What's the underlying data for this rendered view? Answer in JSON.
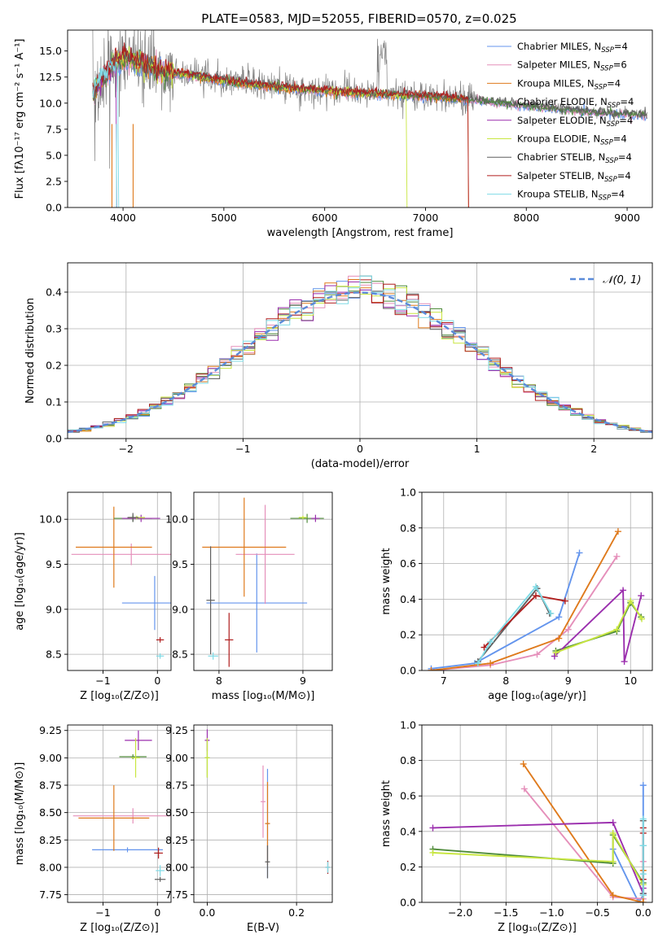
{
  "figure": {
    "title": "PLATE=0583, MJD=52055, FIBERID=0570, z=0.025",
    "background": "#ffffff",
    "model_colors": [
      "#6495ed",
      "#e58fba",
      "#df7a1c",
      "#4f8b3b",
      "#9b2fae",
      "#c8e640",
      "#5f5f5f",
      "#b01e1e",
      "#7fdbe6"
    ],
    "data_color": "#808080"
  },
  "chart_data": [
    {
      "id": "spectrum",
      "type": "line",
      "title": "PLATE=0583, MJD=52055, FIBERID=0570, z=0.025",
      "xlabel": "wavelength [Angstrom, rest frame]",
      "ylabel": "Flux [fλ10⁻¹⁷ erg cm⁻² s⁻¹ A⁻¹]",
      "xlim": [
        3450,
        9250
      ],
      "ylim": [
        0,
        17
      ],
      "xticks": [
        4000,
        5000,
        6000,
        7000,
        8000,
        9000
      ],
      "yticks": [
        0.0,
        2.5,
        5.0,
        7.5,
        10.0,
        12.5,
        15.0
      ],
      "ytick_labels": [
        "0.0",
        "2.5",
        "5.0",
        "7.5",
        "10.0",
        "12.5",
        "15.0"
      ],
      "grid": false,
      "legend_position": "top-right",
      "legend": [
        "Chabrier MILES, N_SSP=4",
        "Salpeter MILES, N_SSP=6",
        "Kroupa MILES, N_SSP=4",
        "Chabrier ELODIE, N_SSP=4",
        "Salpeter ELODIE, N_SSP=4",
        "Kroupa ELODIE, N_SSP=4",
        "Chabrier STELIB, N_SSP=4",
        "Salpeter STELIB, N_SSP=4",
        "Kroupa STELIB, N_SSP=4"
      ],
      "legend_main": [
        "Chabrier MILES, N",
        "Salpeter MILES, N",
        "Kroupa MILES, N",
        "Chabrier ELODIE, N",
        "Salpeter ELODIE, N",
        "Kroupa ELODIE, N",
        "Chabrier STELIB, N",
        "Salpeter STELIB, N",
        "Kroupa STELIB, N"
      ],
      "legend_sub": "SSP",
      "legend_tail": [
        "=4",
        "=6",
        "=4",
        "=4",
        "=4",
        "=4",
        "=4",
        "=4",
        "=4"
      ],
      "continuum": {
        "x": [
          3700,
          3800,
          3900,
          4000,
          4100,
          4200,
          4300,
          4500,
          4700,
          5000,
          5300,
          5600,
          6000,
          6500,
          7000,
          7400,
          7800,
          8200,
          8600,
          9000,
          9200
        ],
        "y": [
          11.0,
          12.5,
          13.5,
          14.5,
          14.2,
          13.8,
          13.4,
          12.9,
          12.6,
          12.2,
          11.8,
          11.5,
          11.2,
          10.9,
          10.7,
          10.4,
          10.0,
          9.6,
          9.2,
          9.0,
          8.9
        ]
      },
      "model_cutoffs_angstrom": [
        null,
        null,
        7420,
        null,
        3930,
        6810,
        null,
        7420,
        3950
      ]
    },
    {
      "id": "residual-histogram",
      "type": "histogram",
      "xlabel": "(data-model)/error",
      "ylabel": "Normed distribution",
      "xlim": [
        -2.5,
        2.5
      ],
      "ylim": [
        0,
        0.48
      ],
      "xticks": [
        -2,
        -1,
        0,
        1,
        2
      ],
      "xtick_labels": [
        "−2",
        "−1",
        "0",
        "1",
        "2"
      ],
      "yticks": [
        0.0,
        0.1,
        0.2,
        0.3,
        0.4
      ],
      "ytick_labels": [
        "0.0",
        "0.1",
        "0.2",
        "0.3",
        "0.4"
      ],
      "grid": true,
      "legend_position": "top-right",
      "reference": {
        "name": "𝒩(0, 1)",
        "color": "#5b8bd9",
        "style": "dashed"
      },
      "bins": {
        "start": -2.5,
        "width": 0.1,
        "count": 50
      }
    },
    {
      "id": "age-vs-z",
      "type": "errorbar",
      "xlabel": "Z [log₁₀(Z/Z⊙)]",
      "ylabel": "age  [log₁₀(age/yr)]",
      "xlim": [
        -1.65,
        0.25
      ],
      "ylim": [
        8.32,
        10.3
      ],
      "xticks": [
        -1,
        0
      ],
      "xtick_labels": [
        "−1",
        "0"
      ],
      "yticks": [
        8.5,
        9.0,
        9.5,
        10.0
      ],
      "ytick_labels": [
        "8.5",
        "9.0",
        "9.5",
        "10.0"
      ],
      "grid": true,
      "points": [
        {
          "model": 0,
          "x": -0.05,
          "xerr": 0.6,
          "y": 9.07,
          "yerr": 0.3
        },
        {
          "model": 1,
          "x": -0.48,
          "xerr": 1.1,
          "y": 9.61,
          "yerr": 0.12
        },
        {
          "model": 2,
          "x": -0.8,
          "xerr": 0.7,
          "y": 9.69,
          "yerr": 0.45
        },
        {
          "model": 3,
          "x": -0.45,
          "xerr": 0.35,
          "y": 10.01,
          "yerr": 0.04
        },
        {
          "model": 4,
          "x": -0.3,
          "xerr": 0.35,
          "y": 10.01,
          "yerr": 0.04
        },
        {
          "model": 5,
          "x": -0.38,
          "xerr": 0.15,
          "y": 10.02,
          "yerr": 0.02
        },
        {
          "model": 6,
          "x": -0.45,
          "xerr": 0.1,
          "y": 10.02,
          "yerr": 0.05
        },
        {
          "model": 7,
          "x": 0.05,
          "xerr": 0.07,
          "y": 8.66,
          "yerr": 0.03
        },
        {
          "model": 8,
          "x": 0.05,
          "xerr": 0.07,
          "y": 8.48,
          "yerr": 0.03
        }
      ]
    },
    {
      "id": "age-vs-mass",
      "type": "errorbar",
      "xlabel": "mass [log₁₀(M/M⊙)]",
      "ylabel": "",
      "xlim": [
        7.7,
        9.35
      ],
      "ylim": [
        8.32,
        10.3
      ],
      "xticks": [
        8,
        9
      ],
      "xtick_labels": [
        "8",
        "9"
      ],
      "yticks": [
        8.5,
        9.0,
        9.5,
        10.0
      ],
      "ytick_labels": [
        "8.5",
        "9.0",
        "9.5",
        "10.0"
      ],
      "grid": true,
      "points": [
        {
          "model": 0,
          "x": 8.45,
          "xerr": 0.6,
          "y": 9.07,
          "yerr": 0.55
        },
        {
          "model": 1,
          "x": 8.55,
          "xerr": 0.35,
          "y": 9.61,
          "yerr": 0.55
        },
        {
          "model": 2,
          "x": 8.3,
          "xerr": 0.5,
          "y": 9.69,
          "yerr": 0.55
        },
        {
          "model": 3,
          "x": 9.05,
          "xerr": 0.2,
          "y": 10.01,
          "yerr": 0.05
        },
        {
          "model": 4,
          "x": 9.15,
          "xerr": 0.05,
          "y": 10.01,
          "yerr": 0.04
        },
        {
          "model": 5,
          "x": 9.0,
          "xerr": 0.05,
          "y": 10.02,
          "yerr": 0.02
        },
        {
          "model": 6,
          "x": 7.9,
          "xerr": 0.05,
          "y": 9.1,
          "yerr": 0.6
        },
        {
          "model": 7,
          "x": 8.12,
          "xerr": 0.05,
          "y": 8.66,
          "yerr": 0.3
        },
        {
          "model": 8,
          "x": 7.93,
          "xerr": 0.06,
          "y": 8.48,
          "yerr": 0.04
        }
      ]
    },
    {
      "id": "mass-weight-vs-age",
      "type": "line",
      "xlabel": "age  [log₁₀(age/yr)]",
      "ylabel": "mass weight",
      "xlim": [
        6.65,
        10.35
      ],
      "ylim": [
        0,
        1.0
      ],
      "xticks": [
        7,
        8,
        9,
        10
      ],
      "xtick_labels": [
        "7",
        "8",
        "9",
        "10"
      ],
      "yticks": [
        0.0,
        0.2,
        0.4,
        0.6,
        0.8,
        1.0
      ],
      "ytick_labels": [
        "0.0",
        "0.2",
        "0.4",
        "0.6",
        "0.8",
        "1.0"
      ],
      "grid": true,
      "series": [
        {
          "model": 0,
          "x": [
            6.8,
            7.5,
            8.85,
            9.18
          ],
          "y": [
            0.01,
            0.04,
            0.3,
            0.66
          ]
        },
        {
          "model": 1,
          "x": [
            6.8,
            7.75,
            8.5,
            9.0,
            9.78
          ],
          "y": [
            0.0,
            0.03,
            0.09,
            0.23,
            0.64
          ]
        },
        {
          "model": 2,
          "x": [
            6.8,
            7.75,
            8.85,
            9.8
          ],
          "y": [
            0.0,
            0.04,
            0.18,
            0.78
          ]
        },
        {
          "model": 3,
          "x": [
            8.8,
            9.78,
            10.0,
            10.17
          ],
          "y": [
            0.11,
            0.22,
            0.38,
            0.3
          ]
        },
        {
          "model": 4,
          "x": [
            8.78,
            9.88,
            9.9,
            10.17
          ],
          "y": [
            0.08,
            0.45,
            0.05,
            0.42
          ]
        },
        {
          "model": 5,
          "x": [
            8.8,
            9.78,
            10.0,
            10.18
          ],
          "y": [
            0.1,
            0.23,
            0.39,
            0.29
          ]
        },
        {
          "model": 6,
          "x": [
            7.55,
            8.5,
            8.7
          ],
          "y": [
            0.05,
            0.46,
            0.32
          ]
        },
        {
          "model": 7,
          "x": [
            7.65,
            8.48,
            8.95
          ],
          "y": [
            0.13,
            0.42,
            0.39
          ]
        },
        {
          "model": 8,
          "x": [
            7.55,
            7.75,
            8.48,
            8.72
          ],
          "y": [
            0.04,
            0.16,
            0.47,
            0.32
          ]
        }
      ]
    },
    {
      "id": "mass-vs-z",
      "type": "errorbar",
      "xlabel": "Z [log₁₀(Z/Z⊙)]",
      "ylabel": "mass [log₁₀(M/M⊙)]",
      "xlim": [
        -1.65,
        0.25
      ],
      "ylim": [
        7.68,
        9.3
      ],
      "xticks": [
        -1,
        0
      ],
      "xtick_labels": [
        "−1",
        "0"
      ],
      "yticks": [
        7.75,
        8.0,
        8.25,
        8.5,
        8.75,
        9.0,
        9.25
      ],
      "ytick_labels": [
        "7.75",
        "8.00",
        "8.25",
        "8.50",
        "8.75",
        "9.00",
        "9.25"
      ],
      "grid": true,
      "points": [
        {
          "model": 0,
          "x": -0.55,
          "xerr": 0.65,
          "y": 8.16,
          "yerr": 0.0
        },
        {
          "model": 1,
          "x": -0.45,
          "xerr": 1.1,
          "y": 8.47,
          "yerr": 0.07
        },
        {
          "model": 2,
          "x": -0.8,
          "xerr": 0.65,
          "y": 8.45,
          "yerr": 0.3
        },
        {
          "model": 3,
          "x": -0.45,
          "xerr": 0.25,
          "y": 9.01,
          "yerr": 0.0
        },
        {
          "model": 4,
          "x": -0.35,
          "xerr": 0.25,
          "y": 9.16,
          "yerr": 0.09
        },
        {
          "model": 5,
          "x": -0.4,
          "xerr": 0.08,
          "y": 9.0,
          "yerr": 0.18
        },
        {
          "model": 6,
          "x": 0.05,
          "xerr": 0.1,
          "y": 7.89,
          "yerr": 0.0
        },
        {
          "model": 7,
          "x": 0.02,
          "xerr": 0.08,
          "y": 8.13,
          "yerr": 0.05
        },
        {
          "model": 8,
          "x": 0.05,
          "xerr": 0.08,
          "y": 7.97,
          "yerr": 0.05
        }
      ]
    },
    {
      "id": "mass-vs-ebv",
      "type": "errorbar",
      "xlabel": "E(B-V)",
      "ylabel": "",
      "xlim": [
        -0.03,
        0.28
      ],
      "ylim": [
        7.68,
        9.3
      ],
      "xticks": [
        0.0,
        0.2
      ],
      "xtick_labels": [
        "0.0",
        "0.2"
      ],
      "yticks": [
        7.75,
        8.0,
        8.25,
        8.5,
        8.75,
        9.0,
        9.25
      ],
      "ytick_labels": [
        "7.75",
        "8.00",
        "8.25",
        "8.50",
        "8.75",
        "9.00",
        "9.25"
      ],
      "grid": true,
      "points": [
        {
          "model": 0,
          "x": 0.135,
          "xerr": 0.0,
          "y": 8.4,
          "yerr": 0.5
        },
        {
          "model": 1,
          "x": 0.125,
          "xerr": 0.0,
          "y": 8.6,
          "yerr": 0.33
        },
        {
          "model": 2,
          "x": 0.135,
          "xerr": 0.0,
          "y": 8.4,
          "yerr": 0.38
        },
        {
          "model": 3,
          "x": 0.0,
          "xerr": 0.0,
          "y": 9.0,
          "yerr": 0.18
        },
        {
          "model": 4,
          "x": 0.0,
          "xerr": 0.0,
          "y": 9.16,
          "yerr": 0.1
        },
        {
          "model": 5,
          "x": 0.0,
          "xerr": 0.0,
          "y": 9.0,
          "yerr": 0.18
        },
        {
          "model": 6,
          "x": 0.135,
          "xerr": 0.0,
          "y": 8.05,
          "yerr": 0.15
        },
        {
          "model": 7,
          "x": 0.27,
          "xerr": 0.0,
          "y": 8.0,
          "yerr": 0.06
        },
        {
          "model": 8,
          "x": 0.27,
          "xerr": 0.0,
          "y": 8.0,
          "yerr": 0.05
        }
      ]
    },
    {
      "id": "mass-weight-vs-z",
      "type": "line",
      "xlabel": "Z [log₁₀(Z/Z⊙)]",
      "ylabel": "mass weight",
      "xlim": [
        -2.42,
        0.1
      ],
      "ylim": [
        0,
        1.0
      ],
      "xticks": [
        -2.0,
        -1.5,
        -1.0,
        -0.5,
        0.0
      ],
      "xtick_labels": [
        "−2.0",
        "−1.5",
        "−1.0",
        "−0.5",
        "0.0"
      ],
      "yticks": [
        0.0,
        0.2,
        0.4,
        0.6,
        0.8,
        1.0
      ],
      "ytick_labels": [
        "0.0",
        "0.2",
        "0.4",
        "0.6",
        "0.8",
        "1.0"
      ],
      "grid": true,
      "series": [
        {
          "model": 0,
          "x": [
            -0.33,
            -0.05,
            0.0,
            0.0
          ],
          "y": [
            0.3,
            0.0,
            0.04,
            0.66
          ]
        },
        {
          "model": 1,
          "x": [
            -1.3,
            -0.33,
            0.0,
            0.0
          ],
          "y": [
            0.64,
            0.03,
            0.02,
            0.23
          ]
        },
        {
          "model": 2,
          "x": [
            -1.31,
            -0.33,
            0.0,
            0.0
          ],
          "y": [
            0.78,
            0.04,
            0.0,
            0.18
          ]
        },
        {
          "model": 3,
          "x": [
            -2.3,
            -0.33,
            -0.33,
            0.0
          ],
          "y": [
            0.3,
            0.22,
            0.38,
            0.11
          ]
        },
        {
          "model": 4,
          "x": [
            -2.3,
            -0.33,
            0.0,
            0.0
          ],
          "y": [
            0.42,
            0.45,
            0.05,
            0.08
          ]
        },
        {
          "model": 5,
          "x": [
            -2.3,
            -0.33,
            -0.33,
            0.0
          ],
          "y": [
            0.28,
            0.23,
            0.39,
            0.1
          ]
        },
        {
          "model": 6,
          "x": [
            0.0,
            0.0,
            0.0
          ],
          "y": [
            0.46,
            0.32,
            0.05
          ]
        },
        {
          "model": 7,
          "x": [
            0.0,
            0.0,
            0.0
          ],
          "y": [
            0.42,
            0.39,
            0.13
          ]
        },
        {
          "model": 8,
          "x": [
            0.0,
            0.0,
            0.0,
            0.0
          ],
          "y": [
            0.47,
            0.32,
            0.16,
            0.04
          ]
        }
      ]
    }
  ]
}
